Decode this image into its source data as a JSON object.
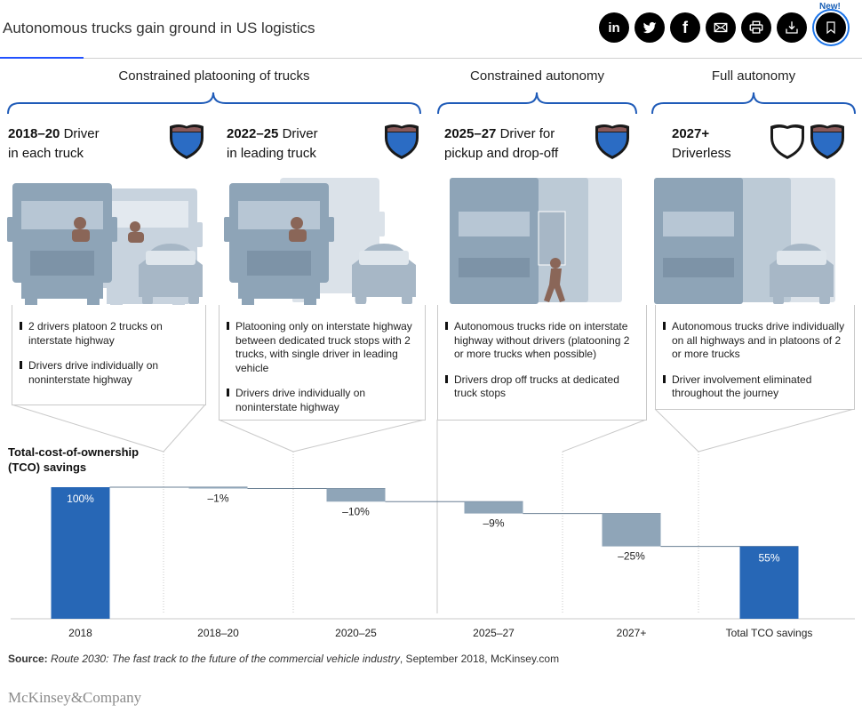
{
  "header": {
    "title": "Autonomous trucks gain ground in US logistics",
    "new_badge": "New!",
    "share_icons": [
      "linkedin-icon",
      "twitter-icon",
      "facebook-icon",
      "email-icon",
      "print-icon",
      "download-icon",
      "bookmark-icon"
    ],
    "linkedin_glyph": "in",
    "facebook_glyph": "f"
  },
  "phases": [
    {
      "label": "Constrained platooning of trucks"
    },
    {
      "label": "Constrained autonomy"
    },
    {
      "label": "Full autonomy"
    }
  ],
  "stages": [
    {
      "year": "2018–20",
      "title_rest_1": " Driver",
      "title_line_2": "in each truck",
      "bullets": [
        "2 drivers platoon 2 trucks on interstate highway",
        "Drivers drive individually on noninterstate highway"
      ]
    },
    {
      "year": "2022–25",
      "title_rest_1": " Driver",
      "title_line_2": "in leading truck",
      "bullets": [
        "Platooning only on interstate highway between dedicated truck stops with 2 trucks, with single driver in leading vehicle",
        "Drivers drive individually on noninterstate highway"
      ]
    },
    {
      "year": "2025–27",
      "title_rest_1": " Driver for",
      "title_line_2": "pickup and drop-off",
      "bullets": [
        "Autonomous trucks ride on interstate highway without drivers (platooning 2 or more trucks when possible)",
        "Drivers drop off trucks at dedicated truck stops"
      ]
    },
    {
      "year": "2027+",
      "title_rest_1": "",
      "title_line_2": "Driverless",
      "bullets": [
        "Autonomous trucks drive individually on all highways and in platoons of 2 or more trucks",
        "Driver involvement eliminated throughout the journey"
      ]
    }
  ],
  "chart_data": {
    "type": "bar",
    "subtype": "waterfall",
    "title": "Total-cost-of-ownership (TCO) savings",
    "categories": [
      "2018",
      "2018–20",
      "2020–25",
      "2025–27",
      "2027+",
      "Total TCO savings"
    ],
    "values": [
      100,
      -1,
      -10,
      -9,
      -25,
      55
    ],
    "value_labels": [
      "100%",
      "–1%",
      "–10%",
      "–9%",
      "–25%",
      "55%"
    ],
    "bar_kind": [
      "total",
      "delta",
      "delta",
      "delta",
      "delta",
      "total"
    ],
    "ylim": [
      0,
      100
    ],
    "grid": false,
    "colors": {
      "total": "#2767b6",
      "delta": "#8fa5b8",
      "connector": "#6a7f93"
    }
  },
  "source": {
    "label": "Source:",
    "italic": "Route 2030: The fast track to the future of the commercial vehicle industry",
    "rest": ", September 2018, McKinsey.com"
  },
  "footer": {
    "logo": "McKinsey&Company"
  }
}
